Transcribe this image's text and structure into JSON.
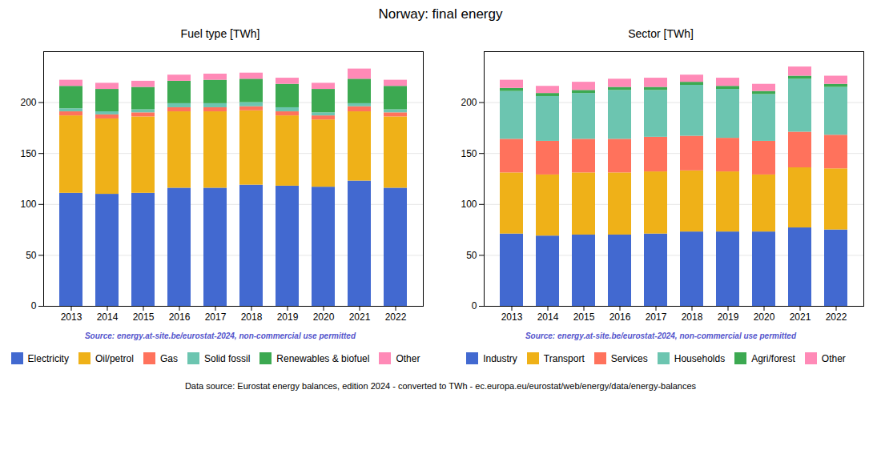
{
  "title": "Norway: final energy",
  "annotations": [
    {
      "text": "Data source: Eurostat energy balances, edition 2024 - converted to TWh - ec.europa.eu/eurostat/web/energy/data/energy-balances"
    }
  ],
  "chart_data": [
    {
      "type": "bar",
      "stacked": true,
      "title": "Fuel type [TWh]",
      "categories": [
        "2013",
        "2014",
        "2015",
        "2016",
        "2017",
        "2018",
        "2019",
        "2020",
        "2021",
        "2022"
      ],
      "series": [
        {
          "name": "Electricity",
          "values": [
            111,
            110,
            111,
            116,
            116,
            119,
            118,
            117,
            123,
            116
          ]
        },
        {
          "name": "Oil/petrol",
          "values": [
            76,
            74,
            75,
            75,
            75,
            73,
            69,
            66,
            68,
            70
          ]
        },
        {
          "name": "Gas",
          "values": [
            4,
            4,
            4,
            4,
            4,
            4,
            4,
            4,
            5,
            4
          ]
        },
        {
          "name": "Solid fossil",
          "values": [
            3,
            3,
            3,
            4,
            4,
            4,
            4,
            3,
            3,
            3
          ]
        },
        {
          "name": "Renewables & biofuel",
          "values": [
            22,
            22,
            22,
            22,
            23,
            23,
            23,
            23,
            24,
            23
          ]
        },
        {
          "name": "Other",
          "values": [
            6,
            6,
            6,
            6,
            6,
            6,
            6,
            6,
            10,
            6
          ]
        }
      ],
      "ylim": [
        0,
        250
      ],
      "yticks": [
        0,
        50,
        100,
        150,
        200
      ],
      "grid": true,
      "legend": "bottom",
      "annotations": [
        {
          "text": "Source: energy.at-site.be/eurostat-2024, non-commercial use permitted",
          "color": "#5555cc"
        }
      ]
    },
    {
      "type": "bar",
      "stacked": true,
      "title": "Sector [TWh]",
      "categories": [
        "2013",
        "2014",
        "2015",
        "2016",
        "2017",
        "2018",
        "2019",
        "2020",
        "2021",
        "2022"
      ],
      "series": [
        {
          "name": "Industry",
          "values": [
            71,
            69,
            70,
            70,
            71,
            73,
            73,
            73,
            77,
            75
          ]
        },
        {
          "name": "Transport",
          "values": [
            60,
            60,
            61,
            61,
            61,
            60,
            59,
            56,
            59,
            60
          ]
        },
        {
          "name": "Services",
          "values": [
            33,
            33,
            33,
            33,
            34,
            34,
            33,
            33,
            35,
            33
          ]
        },
        {
          "name": "Households",
          "values": [
            47,
            44,
            45,
            48,
            46,
            50,
            48,
            46,
            52,
            47
          ]
        },
        {
          "name": "Agri/forest",
          "values": [
            3,
            3,
            3,
            3,
            3,
            3,
            3,
            3,
            3,
            3
          ]
        },
        {
          "name": "Other",
          "values": [
            8,
            7,
            8,
            8,
            9,
            7,
            8,
            7,
            9,
            8
          ]
        }
      ],
      "ylim": [
        0,
        250
      ],
      "yticks": [
        0,
        50,
        100,
        150,
        200
      ],
      "grid": true,
      "legend": "bottom",
      "annotations": [
        {
          "text": "Source: energy.at-site.be/eurostat-2024, non-commercial use permitted",
          "color": "#5555cc"
        }
      ]
    }
  ]
}
